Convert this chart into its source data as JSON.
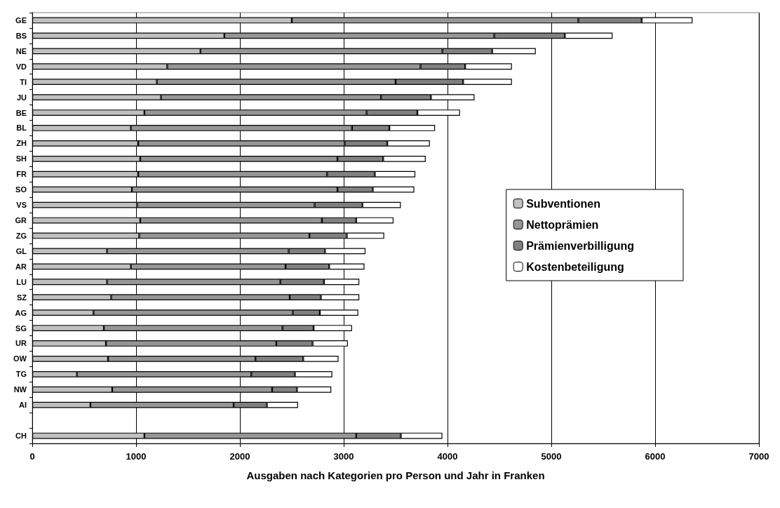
{
  "chart_data": {
    "type": "bar",
    "orientation": "horizontal",
    "stacked": true,
    "xlabel": "Ausgaben nach Kategorien pro Person und Jahr in Franken",
    "categories": [
      "GE",
      "BS",
      "NE",
      "VD",
      "TI",
      "JU",
      "BE",
      "BL",
      "ZH",
      "SH",
      "FR",
      "SO",
      "VS",
      "GR",
      "ZG",
      "GL",
      "AR",
      "LU",
      "SZ",
      "AG",
      "SG",
      "UR",
      "OW",
      "TG",
      "NW",
      "AI",
      null,
      "CH"
    ],
    "series": [
      {
        "name": "Subventionen",
        "color": "#c0c0c0",
        "values": [
          2500,
          1850,
          1620,
          1300,
          1200,
          1240,
          1080,
          950,
          1020,
          1040,
          1020,
          960,
          1010,
          1040,
          1030,
          720,
          950,
          720,
          760,
          590,
          690,
          710,
          730,
          430,
          770,
          560,
          null,
          1080
        ]
      },
      {
        "name": "Nettoprämien",
        "color": "#969696",
        "values": [
          2760,
          2600,
          2330,
          2440,
          2300,
          2120,
          2140,
          2130,
          1990,
          1900,
          1820,
          1980,
          1710,
          1750,
          1640,
          1750,
          1490,
          1670,
          1720,
          1920,
          1720,
          1640,
          1420,
          1680,
          1540,
          1380,
          null,
          2040
        ]
      },
      {
        "name": "Prämienverbilligung",
        "color": "#808080",
        "values": [
          610,
          680,
          480,
          430,
          650,
          480,
          490,
          360,
          410,
          440,
          460,
          340,
          460,
          330,
          360,
          350,
          420,
          420,
          300,
          260,
          300,
          350,
          460,
          420,
          240,
          320,
          null,
          430
        ]
      },
      {
        "name": "Kostenbeteiligung",
        "color": "#ffffff",
        "values": [
          490,
          460,
          420,
          450,
          470,
          420,
          410,
          440,
          410,
          410,
          390,
          400,
          370,
          360,
          360,
          390,
          340,
          340,
          370,
          370,
          370,
          340,
          340,
          360,
          330,
          300,
          null,
          400
        ]
      }
    ],
    "xlim": [
      0,
      7000
    ],
    "xticks": [
      0,
      1000,
      2000,
      3000,
      4000,
      5000,
      6000,
      7000
    ],
    "grid": "x",
    "legend": "right"
  }
}
